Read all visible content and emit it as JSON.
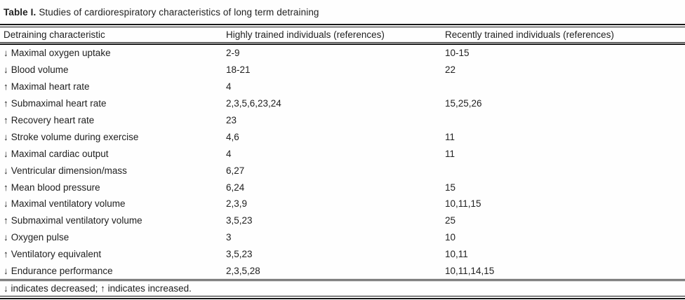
{
  "caption": {
    "label": "Table I.",
    "text": "Studies of cardiorespiratory characteristics of long term detraining"
  },
  "table": {
    "columns": [
      "Detraining characteristic",
      "Highly trained individuals (references)",
      "Recently trained individuals (references)"
    ],
    "rows": [
      {
        "arrow": "↓",
        "direction": "decreased",
        "label": "Maximal oxygen uptake",
        "highly": "2-9",
        "recently": "10-15"
      },
      {
        "arrow": "↓",
        "direction": "decreased",
        "label": "Blood volume",
        "highly": "18-21",
        "recently": "22"
      },
      {
        "arrow": "↑",
        "direction": "increased",
        "label": "Maximal heart rate",
        "highly": "4",
        "recently": ""
      },
      {
        "arrow": "↑",
        "direction": "increased",
        "label": "Submaximal heart rate",
        "highly": "2,3,5,6,23,24",
        "recently": "15,25,26"
      },
      {
        "arrow": "↑",
        "direction": "increased",
        "label": "Recovery heart rate",
        "highly": "23",
        "recently": ""
      },
      {
        "arrow": "↓",
        "direction": "decreased",
        "label": "Stroke volume during exercise",
        "highly": "4,6",
        "recently": "11"
      },
      {
        "arrow": "↓",
        "direction": "decreased",
        "label": "Maximal cardiac output",
        "highly": "4",
        "recently": "11"
      },
      {
        "arrow": "↓",
        "direction": "decreased",
        "label": "Ventricular dimension/mass",
        "highly": "6,27",
        "recently": ""
      },
      {
        "arrow": "↑",
        "direction": "increased",
        "label": "Mean blood pressure",
        "highly": "6,24",
        "recently": "15"
      },
      {
        "arrow": "↓",
        "direction": "decreased",
        "label": "Maximal ventilatory volume",
        "highly": "2,3,9",
        "recently": "10,11,15"
      },
      {
        "arrow": "↑",
        "direction": "increased",
        "label": "Submaximal ventilatory volume",
        "highly": "3,5,23",
        "recently": "25"
      },
      {
        "arrow": "↓",
        "direction": "decreased",
        "label": "Oxygen pulse",
        "highly": "3",
        "recently": "10"
      },
      {
        "arrow": "↑",
        "direction": "increased",
        "label": "Ventilatory equivalent",
        "highly": "3,5,23",
        "recently": "10,11"
      },
      {
        "arrow": "↓",
        "direction": "decreased",
        "label": "Endurance performance",
        "highly": "2,3,5,28",
        "recently": "10,11,14,15"
      }
    ],
    "footnote": "↓ indicates decreased; ↑ indicates increased."
  },
  "colors": {
    "text": "#212121",
    "rule": "#161616",
    "background": "#fefefe"
  }
}
